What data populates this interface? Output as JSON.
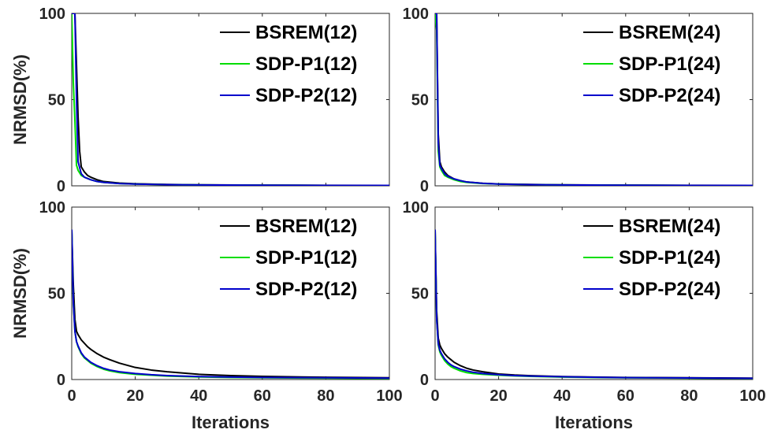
{
  "chart_data": [
    {
      "type": "line",
      "xlim": [
        0,
        100
      ],
      "ylim": [
        0,
        100
      ],
      "xticks": [],
      "yticks": [
        "0",
        "50",
        "100"
      ],
      "xlabel": "",
      "ylabel": "NRMSD(%)",
      "grid": false,
      "legend_position": "top-right",
      "series": [
        {
          "name": "BSREM(12)",
          "color": "#000000",
          "x": [
            0,
            1,
            1.5,
            2,
            2.5,
            3,
            4,
            5,
            6,
            8,
            10,
            15,
            20,
            30,
            40,
            60,
            80,
            100
          ],
          "y": [
            100,
            100,
            70,
            40,
            20,
            11,
            8,
            6,
            5,
            3.5,
            2.5,
            1.6,
            1.2,
            0.8,
            0.6,
            0.4,
            0.3,
            0.2
          ]
        },
        {
          "name": "SDP-P1(12)",
          "color": "#00dd00",
          "x": [
            0,
            0.5,
            1,
            1.5,
            2,
            3,
            4,
            6,
            8,
            10,
            15,
            20,
            30,
            40,
            60,
            80,
            100
          ],
          "y": [
            100,
            60,
            38,
            12,
            9,
            6,
            5,
            3.5,
            2.5,
            2,
            1.3,
            1,
            0.7,
            0.5,
            0.35,
            0.25,
            0.2
          ]
        },
        {
          "name": "SDP-P2(12)",
          "color": "#0000cc",
          "x": [
            0,
            0.5,
            1,
            1.5,
            2,
            3,
            4,
            6,
            8,
            10,
            15,
            20,
            30,
            40,
            60,
            80,
            100
          ],
          "y": [
            100,
            100,
            100,
            50,
            14,
            7,
            5,
            3.5,
            2.5,
            2,
            1.3,
            1,
            0.7,
            0.5,
            0.35,
            0.25,
            0.2
          ]
        }
      ]
    },
    {
      "type": "line",
      "xlim": [
        0,
        100
      ],
      "ylim": [
        0,
        100
      ],
      "xticks": [],
      "yticks": [
        "0",
        "50",
        "100"
      ],
      "xlabel": "",
      "ylabel": "",
      "grid": false,
      "legend_position": "top-right",
      "series": [
        {
          "name": "BSREM(24)",
          "color": "#000000",
          "x": [
            0,
            0.5,
            1,
            1.5,
            2,
            3,
            4,
            6,
            8,
            10,
            15,
            20,
            30,
            40,
            60,
            80,
            100
          ],
          "y": [
            100,
            100,
            30,
            14,
            11,
            8,
            6,
            4,
            3,
            2.2,
            1.5,
            1.1,
            0.8,
            0.6,
            0.4,
            0.3,
            0.2
          ]
        },
        {
          "name": "SDP-P1(24)",
          "color": "#00dd00",
          "x": [
            0,
            0.5,
            1,
            1.5,
            2,
            3,
            4,
            6,
            8,
            10,
            15,
            20,
            30,
            40,
            60,
            80,
            100
          ],
          "y": [
            100,
            90,
            20,
            11,
            9,
            6,
            5,
            3.5,
            2.5,
            2,
            1.3,
            1,
            0.7,
            0.5,
            0.35,
            0.25,
            0.2
          ]
        },
        {
          "name": "SDP-P2(24)",
          "color": "#0000cc",
          "x": [
            0,
            0.5,
            1,
            1.5,
            2,
            3,
            4,
            6,
            8,
            10,
            15,
            20,
            30,
            40,
            60,
            80,
            100
          ],
          "y": [
            100,
            100,
            25,
            12,
            10,
            7,
            5.5,
            4,
            3,
            2.2,
            1.4,
            1,
            0.7,
            0.5,
            0.35,
            0.25,
            0.2
          ]
        }
      ]
    },
    {
      "type": "line",
      "xlim": [
        0,
        100
      ],
      "ylim": [
        0,
        100
      ],
      "xticks": [
        "0",
        "20",
        "40",
        "60",
        "80",
        "100"
      ],
      "yticks": [
        "0",
        "50",
        "100"
      ],
      "xlabel": "Iterations",
      "ylabel": "NRMSD(%)",
      "grid": false,
      "legend_position": "top-right",
      "series": [
        {
          "name": "BSREM(12)",
          "color": "#000000",
          "x": [
            0,
            0.5,
            1,
            1.5,
            2,
            3,
            4,
            5,
            6,
            8,
            10,
            12,
            15,
            20,
            25,
            30,
            40,
            50,
            60,
            80,
            100
          ],
          "y": [
            87,
            55,
            35,
            28,
            26,
            23,
            21,
            19,
            17.5,
            15,
            13,
            11.5,
            9.5,
            7,
            5.5,
            4.5,
            3,
            2.3,
            1.8,
            1.3,
            1
          ]
        },
        {
          "name": "SDP-P1(12)",
          "color": "#00dd00",
          "x": [
            0,
            0.5,
            1,
            1.5,
            2,
            3,
            4,
            5,
            6,
            8,
            10,
            12,
            15,
            20,
            25,
            30,
            40,
            50,
            60,
            80,
            100
          ],
          "y": [
            87,
            45,
            28,
            22,
            19,
            15,
            12.5,
            11,
            9.5,
            7.5,
            6,
            5,
            4,
            3,
            2.5,
            2,
            1.5,
            1.2,
            1,
            0.8,
            0.6
          ]
        },
        {
          "name": "SDP-P2(12)",
          "color": "#0000cc",
          "x": [
            0,
            0.5,
            1,
            1.5,
            2,
            3,
            4,
            5,
            6,
            8,
            10,
            12,
            15,
            20,
            25,
            30,
            40,
            50,
            60,
            80,
            100
          ],
          "y": [
            87,
            45,
            28,
            22,
            19.5,
            15.5,
            13,
            11.5,
            10,
            8,
            6.5,
            5.5,
            4.5,
            3.5,
            2.8,
            2.3,
            1.7,
            1.4,
            1.2,
            1,
            0.8
          ]
        }
      ]
    },
    {
      "type": "line",
      "xlim": [
        0,
        100
      ],
      "ylim": [
        0,
        100
      ],
      "xticks": [
        "0",
        "20",
        "40",
        "60",
        "80",
        "100"
      ],
      "yticks": [
        "0",
        "50",
        "100"
      ],
      "xlabel": "Iterations",
      "ylabel": "",
      "grid": false,
      "legend_position": "top-right",
      "series": [
        {
          "name": "BSREM(24)",
          "color": "#000000",
          "x": [
            0,
            0.5,
            1,
            1.5,
            2,
            3,
            4,
            5,
            6,
            8,
            10,
            12,
            15,
            20,
            25,
            30,
            40,
            50,
            60,
            80,
            100
          ],
          "y": [
            87,
            40,
            24,
            20,
            18,
            15,
            13,
            11.5,
            10,
            8,
            6.5,
            5.5,
            4.5,
            3.2,
            2.6,
            2.2,
            1.7,
            1.4,
            1.2,
            1,
            0.8
          ]
        },
        {
          "name": "SDP-P1(24)",
          "color": "#00dd00",
          "x": [
            0,
            0.5,
            1,
            1.5,
            2,
            3,
            4,
            5,
            6,
            8,
            10,
            12,
            15,
            20,
            25,
            30,
            40,
            50,
            60,
            80,
            100
          ],
          "y": [
            87,
            35,
            20,
            16,
            14,
            11,
            9,
            7.5,
            6.5,
            5,
            4,
            3.5,
            3,
            2.5,
            2.1,
            1.8,
            1.4,
            1.2,
            1,
            0.8,
            0.6
          ]
        },
        {
          "name": "SDP-P2(24)",
          "color": "#0000cc",
          "x": [
            0,
            0.5,
            1,
            1.5,
            2,
            3,
            4,
            5,
            6,
            8,
            10,
            12,
            15,
            20,
            25,
            30,
            40,
            50,
            60,
            80,
            100
          ],
          "y": [
            87,
            35,
            21,
            17,
            15,
            12,
            10,
            8.5,
            7.5,
            6,
            5,
            4.2,
            3.5,
            2.8,
            2.3,
            2,
            1.6,
            1.3,
            1.1,
            0.9,
            0.7
          ]
        }
      ]
    }
  ]
}
